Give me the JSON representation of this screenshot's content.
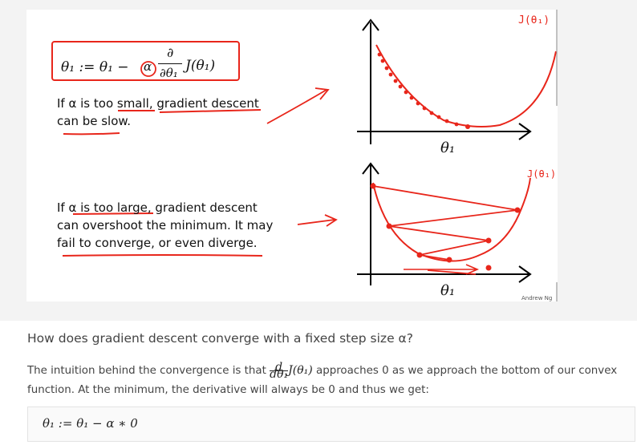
{
  "slide": {
    "formula": "θ₁ := θ₁ − α ∂/∂θ₁ J(θ₁)",
    "formula_lhs": "θ₁ := θ₁ −",
    "formula_alpha": "α",
    "formula_partial": "∂",
    "formula_wrt": "∂θ₁",
    "formula_j": "J(θ₁)",
    "note_small_line1": "If α is too small, gradient descent",
    "note_small_line2": "can be slow.",
    "note_large_line1": "If α is too large, gradient descent",
    "note_large_line2": "can overshoot the minimum. It may",
    "note_large_line3": "fail to converge, or even diverge.",
    "top_curve_label": "J(θ₁)",
    "bottom_curve_label": "J(θ₁)",
    "x_axis_top_label": "θ₁",
    "x_axis_bottom_label": "θ₁",
    "credit": "Andrew Ng"
  },
  "question": "How does gradient descent converge with a fixed step size α?",
  "paragraph": {
    "before": "The intuition behind the convergence is that",
    "deriv_num": "d",
    "deriv_den": "dθ₁",
    "j_expr": "J(θ₁)",
    "after": "approaches 0 as we approach the bottom of our convex function. At the minimum, the derivative will always be 0 and thus we get:"
  },
  "equation": "θ₁ := θ₁ − α ∗ 0",
  "colors": {
    "ink": "#e8261b",
    "text": "#444444",
    "slide_bg": "#f3f3f3"
  }
}
